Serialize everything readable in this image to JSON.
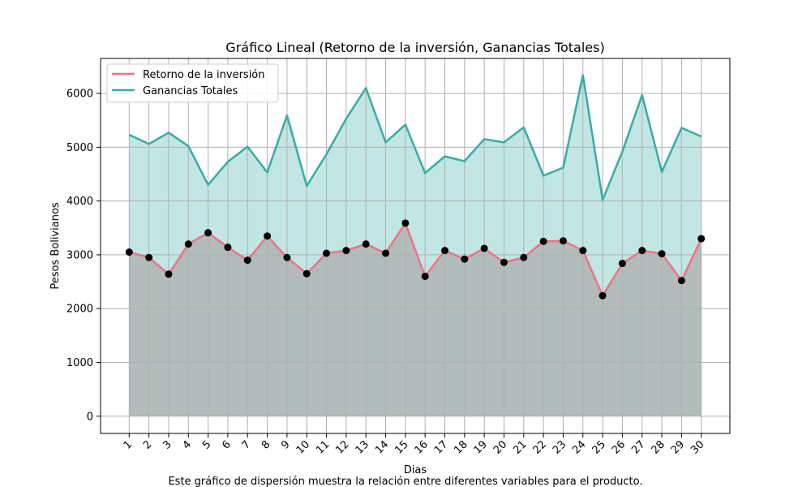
{
  "chart_data": {
    "type": "line",
    "title": "Gráfico Lineal (Retorno de la inversión, Ganancias Totales)",
    "xlabel": "Dias",
    "ylabel": "Pesos Bolivianos",
    "caption": "Este gráfico de dispersión muestra la relación entre diferentes variables para el producto.",
    "categories": [
      "1",
      "2",
      "3",
      "4",
      "5",
      "6",
      "7",
      "8",
      "9",
      "10",
      "11",
      "12",
      "13",
      "14",
      "15",
      "16",
      "17",
      "18",
      "19",
      "20",
      "21",
      "22",
      "23",
      "24",
      "25",
      "26",
      "27",
      "28",
      "29",
      "30"
    ],
    "ylim": [
      -320,
      6650
    ],
    "yticks": [
      0,
      1000,
      2000,
      3000,
      4000,
      5000,
      6000
    ],
    "grid": true,
    "legend_position": "top-left",
    "series": [
      {
        "name": "Retorno de la inversión",
        "color": "#f07189",
        "fill_color": "#a9a9a9",
        "markers": true,
        "values": [
          3050,
          2950,
          2640,
          3200,
          3410,
          3140,
          2900,
          3350,
          2950,
          2650,
          3030,
          3080,
          3200,
          3030,
          3590,
          2600,
          3080,
          2920,
          3120,
          2860,
          2950,
          3250,
          3260,
          3080,
          2240,
          2840,
          3080,
          3020,
          2520,
          3300
        ]
      },
      {
        "name": "Ganancias Totales",
        "color": "#36ada4",
        "fill_color": "#36ada4",
        "markers": false,
        "values": [
          5230,
          5060,
          5270,
          5020,
          4300,
          4730,
          5010,
          4530,
          5590,
          4280,
          4870,
          5530,
          6100,
          5090,
          5420,
          4520,
          4830,
          4740,
          5150,
          5090,
          5370,
          4470,
          4620,
          6340,
          4020,
          4920,
          5970,
          4540,
          5360,
          5200
        ]
      }
    ]
  }
}
